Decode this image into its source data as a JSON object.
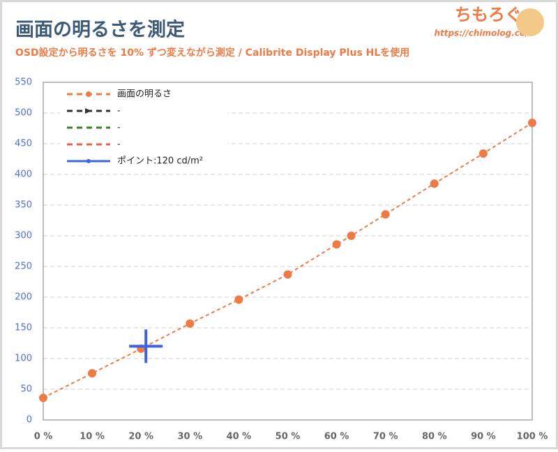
{
  "chart_data": {
    "type": "line",
    "title": "画面の明るさを測定",
    "subtitle": "OSD設定から明るさを 10% ずつ変えながら測定 / Calibrite Display Plus HLを使用",
    "xlim": [
      0,
      100
    ],
    "ylim": [
      0,
      550
    ],
    "xticks": [
      {
        "value": 0,
        "label": "0 %"
      },
      {
        "value": 10,
        "label": "10 %"
      },
      {
        "value": 20,
        "label": "20 %"
      },
      {
        "value": 30,
        "label": "30 %"
      },
      {
        "value": 40,
        "label": "40 %"
      },
      {
        "value": 50,
        "label": "50 %"
      },
      {
        "value": 60,
        "label": "60 %"
      },
      {
        "value": 70,
        "label": "70 %"
      },
      {
        "value": 80,
        "label": "80 %"
      },
      {
        "value": 90,
        "label": "90 %"
      },
      {
        "value": 100,
        "label": "100 %"
      }
    ],
    "yticks": [
      0,
      50,
      100,
      150,
      200,
      250,
      300,
      350,
      400,
      450,
      500,
      550
    ],
    "grid": true,
    "series": [
      {
        "name": "画面の明るさ",
        "color": "#ee7a45",
        "dashed": true,
        "marker": "circle",
        "x": [
          0,
          10,
          20,
          30,
          40,
          50,
          60,
          63,
          70,
          80,
          90,
          100
        ],
        "values": [
          36,
          76,
          116,
          157,
          196,
          237,
          286,
          300,
          335,
          385,
          434,
          484
        ]
      },
      {
        "name": "-",
        "color": "#333333",
        "dashed": true,
        "marker": "arrow",
        "x": [],
        "values": []
      },
      {
        "name": "-",
        "color": "#3a7d2a",
        "dashed": true,
        "marker": "none",
        "x": [],
        "values": []
      },
      {
        "name": "-",
        "color": "#e8604a",
        "dashed": true,
        "marker": "none",
        "x": [],
        "values": []
      },
      {
        "name": "ポイント:120 cd/m²",
        "color": "#3d63e0",
        "dashed": false,
        "marker": "cross",
        "x": [
          21
        ],
        "values": [
          120
        ]
      }
    ]
  },
  "brand": {
    "name": "ちもろぐ",
    "url": "https://chimolog.co/"
  }
}
